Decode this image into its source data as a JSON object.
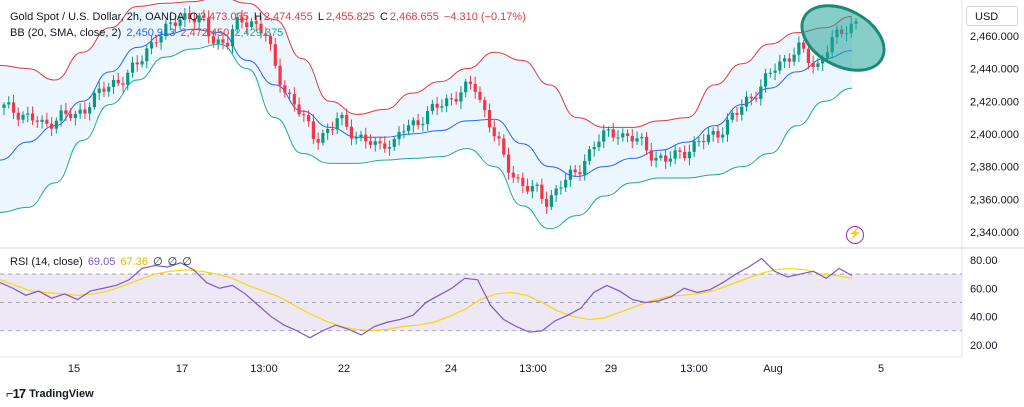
{
  "header": {
    "symbol": "Gold Spot / U.S. Dollar, 2h, OANDA",
    "o_label": "O",
    "o": "2,473.035",
    "h_label": "H",
    "h": "2,474.455",
    "l_label": "L",
    "l": "2,455.825",
    "c_label": "C",
    "c": "2,468.655",
    "change": "−4.310 (−0.17%)"
  },
  "bb_legend": {
    "label": "BB (20, SMA, close, 2)",
    "basis": "2,450.913",
    "upper": "2,472.450",
    "lower": "2,429.375"
  },
  "rsi_legend": {
    "label": "RSI (14, close)",
    "rsi": "69.05",
    "ma": "67.36",
    "na1": "∅",
    "na2": "∅",
    "na3": "∅"
  },
  "currency": "USD",
  "brand": "TradingView",
  "colors": {
    "up": "#089981",
    "down": "#f23645",
    "bb_upper": "#e03a3e",
    "bb_lower": "#26a69a",
    "bb_basis": "#2962ff",
    "bb_fill": "#e3f2fd",
    "rsi": "#7e57c2",
    "rsi_ma": "#f5d90a",
    "rsi_band": "#ede7f6",
    "highlight": "#26a69a"
  },
  "chart_data": [
    {
      "type": "candlestick",
      "title": "Gold Spot / U.S. Dollar, 2h, OANDA",
      "y_ticks": [
        2340,
        2360,
        2380,
        2400,
        2420,
        2440,
        2460
      ],
      "ylim": [
        2332,
        2482
      ],
      "x_ticks": [
        "15",
        "17",
        "13:00",
        "22",
        "24",
        "13:00",
        "29",
        "13:00",
        "Aug",
        "5"
      ],
      "close_path_x": [
        0,
        4,
        8,
        10,
        14,
        18,
        20,
        22,
        26,
        30,
        34,
        38,
        40,
        44,
        46,
        50,
        52,
        56,
        58,
        62,
        66,
        68,
        70,
        74,
        78,
        82,
        84,
        86,
        90,
        94,
        96,
        98,
        100,
        104,
        106,
        110,
        114,
        118,
        120,
        124,
        126,
        130,
        134,
        136,
        140,
        144,
        146,
        150,
        154,
        156,
        160,
        164,
        166,
        170,
        174,
        178,
        180,
        184,
        186,
        190,
        194,
        196,
        200,
        204,
        206,
        210,
        214
      ],
      "close_path_y": [
        2416,
        2413,
        2408,
        2404,
        2412,
        2410,
        2415,
        2422,
        2428,
        2435,
        2443,
        2460,
        2462,
        2470,
        2474,
        2468,
        2458,
        2456,
        2466,
        2470,
        2460,
        2440,
        2430,
        2414,
        2398,
        2402,
        2410,
        2405,
        2396,
        2392,
        2396,
        2394,
        2402,
        2408,
        2412,
        2418,
        2425,
        2430,
        2418,
        2396,
        2380,
        2370,
        2364,
        2358,
        2370,
        2376,
        2386,
        2398,
        2402,
        2398,
        2395,
        2385,
        2383,
        2389,
        2393,
        2400,
        2402,
        2412,
        2420,
        2428,
        2442,
        2446,
        2452,
        2440,
        2450,
        2462,
        2469
      ],
      "bb_upper": [
        2442,
        2440,
        2433,
        2450,
        2465,
        2478,
        2480,
        2481,
        2484,
        2480,
        2470,
        2446,
        2420,
        2412,
        2415,
        2425,
        2432,
        2440,
        2450,
        2445,
        2430,
        2410,
        2404,
        2404,
        2408,
        2410,
        2430,
        2443,
        2455,
        2462,
        2465,
        2472
      ],
      "bb_lower": [
        2352,
        2355,
        2370,
        2396,
        2418,
        2433,
        2447,
        2452,
        2455,
        2440,
        2410,
        2388,
        2382,
        2382,
        2384,
        2385,
        2386,
        2391,
        2380,
        2356,
        2342,
        2350,
        2362,
        2370,
        2373,
        2373,
        2375,
        2380,
        2388,
        2405,
        2420,
        2428
      ],
      "bb_basis": [
        2384,
        2395,
        2405,
        2420,
        2438,
        2453,
        2461,
        2464,
        2462,
        2445,
        2430,
        2414,
        2404,
        2398,
        2398,
        2400,
        2402,
        2408,
        2409,
        2394,
        2380,
        2374,
        2380,
        2385,
        2390,
        2395,
        2405,
        2418,
        2428,
        2438,
        2446,
        2451
      ],
      "annotation": "ellipse highlight around latest candles near 2,470"
    },
    {
      "type": "line",
      "title": "RSI (14, close)",
      "y_ticks": [
        20,
        40,
        60,
        80
      ],
      "ylim": [
        15,
        87
      ],
      "bands": [
        30,
        50,
        70
      ],
      "rsi": [
        64,
        60,
        55,
        58,
        53,
        56,
        52,
        58,
        60,
        62,
        66,
        74,
        76,
        75,
        78,
        73,
        64,
        60,
        62,
        56,
        48,
        40,
        34,
        30,
        25,
        30,
        34,
        31,
        27,
        33,
        36,
        38,
        41,
        50,
        55,
        60,
        67,
        66,
        48,
        38,
        33,
        29,
        30,
        37,
        41,
        46,
        57,
        62,
        58,
        52,
        50,
        51,
        54,
        60,
        57,
        59,
        64,
        70,
        75,
        81,
        72,
        68,
        70,
        72,
        67,
        74,
        69
      ],
      "rsi_ma": [
        66,
        62,
        58,
        57,
        56,
        55,
        56,
        58,
        62,
        66,
        70,
        72,
        73,
        72,
        70,
        67,
        62,
        58,
        54,
        48,
        42,
        37,
        33,
        31,
        30,
        31,
        33,
        34,
        36,
        40,
        45,
        52,
        56,
        57,
        55,
        50,
        44,
        40,
        38,
        39,
        43,
        47,
        51,
        54,
        55,
        56,
        58,
        62,
        66,
        70,
        73,
        74,
        73,
        70,
        69,
        67
      ]
    }
  ]
}
